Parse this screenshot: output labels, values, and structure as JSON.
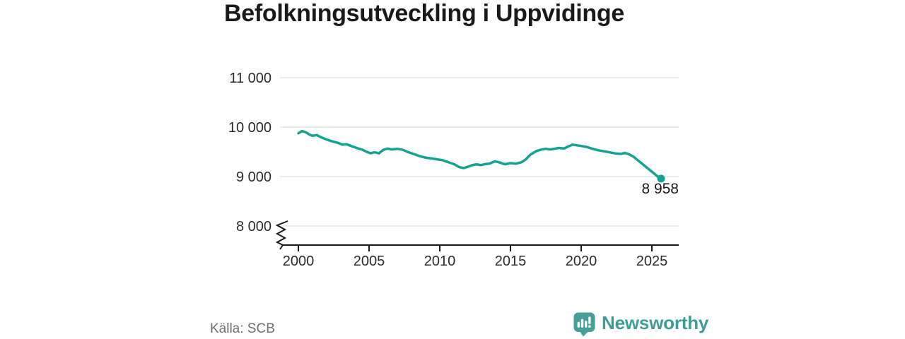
{
  "title": "Befolkningsutveckling i Uppvidinge",
  "source": "Källa: SCB",
  "brand": {
    "name": "Newsworthy",
    "logo_icon": "speech-bubble-bar-chart",
    "color": "#3e9e96"
  },
  "colors": {
    "line": "#15a292",
    "dot": "#15a292",
    "grid": "#d9d9d9",
    "axis": "#1a1a1a",
    "tick_text": "#2b2b2b",
    "value_label_text": "#1a1a1a"
  },
  "chart_data": {
    "type": "line",
    "title": "Befolkningsutveckling i Uppvidinge",
    "xlabel": "",
    "ylabel": "",
    "legend": null,
    "grid": "horizontal",
    "axis_break_bottom_left": true,
    "x_axis": {
      "ticks": [
        {
          "value": 2000,
          "label": "2000"
        },
        {
          "value": 2005,
          "label": "2005"
        },
        {
          "value": 2010,
          "label": "2010"
        },
        {
          "value": 2015,
          "label": "2015"
        },
        {
          "value": 2020,
          "label": "2020"
        },
        {
          "value": 2025,
          "label": "2025"
        }
      ],
      "range": [
        2000,
        2026.9
      ]
    },
    "y_axis": {
      "ticks": [
        {
          "value": 8000,
          "label": "8 000"
        },
        {
          "value": 9000,
          "label": "9 000"
        },
        {
          "value": 10000,
          "label": "10 000"
        },
        {
          "value": 11000,
          "label": "11 000"
        }
      ],
      "display_range": [
        8000,
        11000
      ]
    },
    "end_label": "8 958",
    "end_value": 8958,
    "series": [
      {
        "name": "Befolkning",
        "points": [
          [
            2000.0,
            9875
          ],
          [
            2000.25,
            9920
          ],
          [
            2000.5,
            9900
          ],
          [
            2000.75,
            9855
          ],
          [
            2001.0,
            9825
          ],
          [
            2001.3,
            9838
          ],
          [
            2001.6,
            9795
          ],
          [
            2002.0,
            9748
          ],
          [
            2002.4,
            9712
          ],
          [
            2002.8,
            9682
          ],
          [
            2003.1,
            9645
          ],
          [
            2003.4,
            9655
          ],
          [
            2003.8,
            9612
          ],
          [
            2004.2,
            9572
          ],
          [
            2004.5,
            9545
          ],
          [
            2004.8,
            9505
          ],
          [
            2005.1,
            9472
          ],
          [
            2005.4,
            9492
          ],
          [
            2005.7,
            9468
          ],
          [
            2006.0,
            9540
          ],
          [
            2006.3,
            9565
          ],
          [
            2006.6,
            9548
          ],
          [
            2007.0,
            9562
          ],
          [
            2007.4,
            9540
          ],
          [
            2007.8,
            9492
          ],
          [
            2008.2,
            9452
          ],
          [
            2008.6,
            9412
          ],
          [
            2009.0,
            9382
          ],
          [
            2009.4,
            9368
          ],
          [
            2009.8,
            9348
          ],
          [
            2010.2,
            9332
          ],
          [
            2010.6,
            9292
          ],
          [
            2011.0,
            9252
          ],
          [
            2011.4,
            9188
          ],
          [
            2011.7,
            9172
          ],
          [
            2012.0,
            9198
          ],
          [
            2012.3,
            9232
          ],
          [
            2012.6,
            9248
          ],
          [
            2012.9,
            9232
          ],
          [
            2013.2,
            9252
          ],
          [
            2013.5,
            9262
          ],
          [
            2013.9,
            9308
          ],
          [
            2014.2,
            9288
          ],
          [
            2014.6,
            9248
          ],
          [
            2015.0,
            9272
          ],
          [
            2015.4,
            9262
          ],
          [
            2015.8,
            9292
          ],
          [
            2016.1,
            9352
          ],
          [
            2016.4,
            9442
          ],
          [
            2016.8,
            9512
          ],
          [
            2017.2,
            9548
          ],
          [
            2017.5,
            9562
          ],
          [
            2017.8,
            9548
          ],
          [
            2018.1,
            9562
          ],
          [
            2018.4,
            9578
          ],
          [
            2018.8,
            9568
          ],
          [
            2019.1,
            9612
          ],
          [
            2019.4,
            9645
          ],
          [
            2019.7,
            9632
          ],
          [
            2020.0,
            9618
          ],
          [
            2020.4,
            9598
          ],
          [
            2020.8,
            9562
          ],
          [
            2021.2,
            9532
          ],
          [
            2021.6,
            9512
          ],
          [
            2022.0,
            9492
          ],
          [
            2022.4,
            9468
          ],
          [
            2022.8,
            9458
          ],
          [
            2023.1,
            9478
          ],
          [
            2023.4,
            9448
          ],
          [
            2023.7,
            9402
          ],
          [
            2024.0,
            9332
          ],
          [
            2024.3,
            9262
          ],
          [
            2024.6,
            9192
          ],
          [
            2024.9,
            9122
          ],
          [
            2025.2,
            9052
          ],
          [
            2025.45,
            8992
          ],
          [
            2025.65,
            8958
          ]
        ]
      }
    ]
  }
}
